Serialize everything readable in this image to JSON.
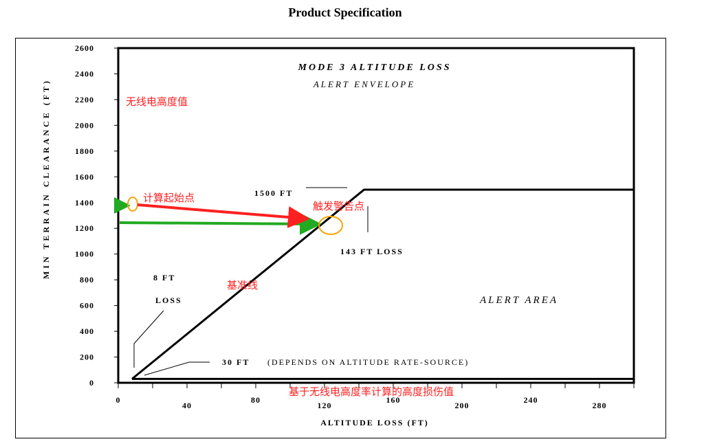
{
  "page": {
    "title": "Product Specification"
  },
  "colors": {
    "red": "#ff2020",
    "green": "#22aa22",
    "orange": "#f5a500",
    "axis": "#000000"
  },
  "chart_data": {
    "type": "line",
    "title": "MODE 3 ALTITUDE LOSS",
    "subtitle": "ALERT ENVELOPE",
    "xlabel": "ALTITUDE LOSS (FT)",
    "ylabel": "MIN TERRAIN CLEARANCE (FT)",
    "xlim": [
      0,
      300
    ],
    "ylim": [
      0,
      2600
    ],
    "x_ticks": [
      0,
      40,
      80,
      120,
      160,
      200,
      240,
      280
    ],
    "y_ticks": [
      0,
      200,
      400,
      600,
      800,
      1000,
      1200,
      1400,
      1600,
      1800,
      2000,
      2200,
      2400,
      2600
    ],
    "grid": false,
    "series": [
      {
        "points": [
          [
            8,
            30
          ],
          [
            143,
            1500
          ],
          [
            300,
            1500
          ]
        ]
      },
      {
        "points": [
          [
            8,
            30
          ],
          [
            300,
            30
          ]
        ]
      }
    ],
    "annotations": {
      "peak": "1500 FT",
      "loss_143": "143 FT LOSS",
      "ft8": "8 FT",
      "loss_word": "LOSS",
      "ft30": "30 FT",
      "depends": "(DEPENDS ON ALTITUDE RATE-SOURCE)",
      "alert_area": "ALERT AREA"
    },
    "overlay_labels_cn": {
      "radio_alt": "无线电高度值",
      "calc_start": "计算起始点",
      "trigger": "触发警告点",
      "baseline": "基准线",
      "bottom_note": "基于无线电高度率计算的高度损伤值"
    }
  }
}
